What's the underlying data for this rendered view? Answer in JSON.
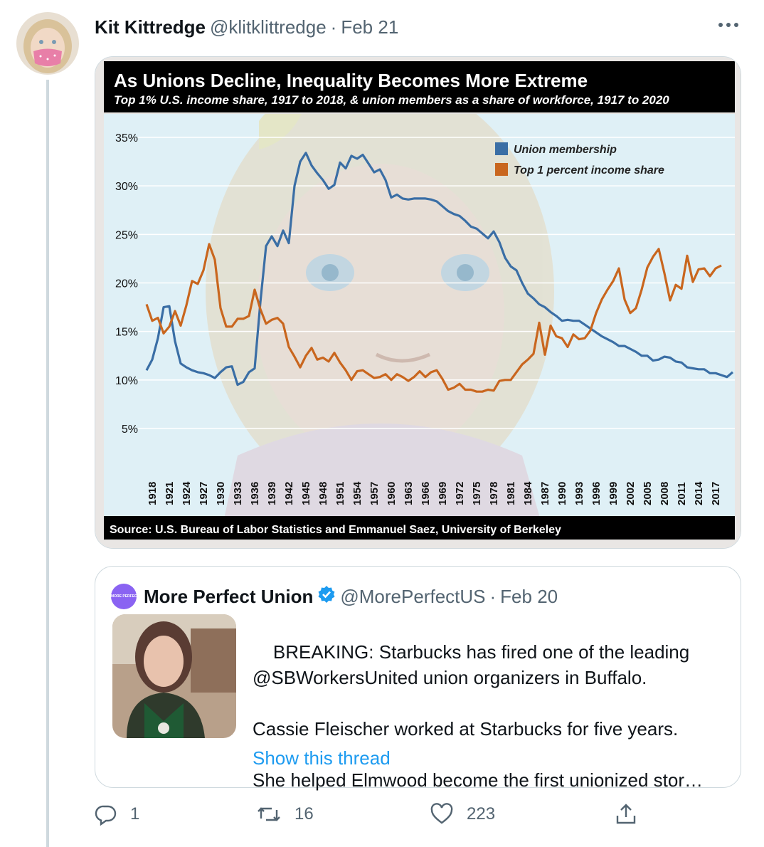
{
  "tweet": {
    "display_name": "Kit Kittredge",
    "handle": "@klitklittredge",
    "separator": "·",
    "date": "Feb 21",
    "more_label": "•••"
  },
  "media": {
    "title": "As Unions Decline, Inequality Becomes More Extreme",
    "subtitle": "Top 1% U.S. income share, 1917 to 2018, & union members as a share of workforce, 1917 to 2020",
    "source": "Source: U.S. Bureau of Labor Statistics and Emmanuel Saez, University of Berkeley"
  },
  "chart_data": {
    "type": "line",
    "title": "As Unions Decline, Inequality Becomes More Extreme",
    "subtitle": "Top 1% U.S. income share, 1917 to 2018, & union members as a share of workforce, 1917 to 2020",
    "ylim": [
      0,
      37
    ],
    "y_ticks": [
      "35%",
      "30%",
      "25%",
      "20%",
      "15%",
      "10%",
      "5%"
    ],
    "y_tick_values": [
      35,
      30,
      25,
      20,
      15,
      10,
      5
    ],
    "x_ticks": [
      "1918",
      "1921",
      "1924",
      "1927",
      "1930",
      "1933",
      "1936",
      "1939",
      "1942",
      "1945",
      "1948",
      "1951",
      "1954",
      "1957",
      "1960",
      "1963",
      "1966",
      "1969",
      "1972",
      "1975",
      "1978",
      "1981",
      "1984",
      "1987",
      "1990",
      "1993",
      "1996",
      "1999",
      "2002",
      "2005",
      "2008",
      "2011",
      "2014",
      "2017"
    ],
    "grid": true,
    "legend_position": "top-right",
    "source": "Source: U.S. Bureau of Labor Statistics and Emmanuel Saez, University of Berkeley",
    "series": [
      {
        "name": "Union membership",
        "color": "#3a6ea5",
        "x": [
          1917,
          1918,
          1919,
          1920,
          1921,
          1922,
          1923,
          1924,
          1925,
          1926,
          1927,
          1928,
          1929,
          1930,
          1931,
          1932,
          1933,
          1934,
          1935,
          1936,
          1937,
          1938,
          1939,
          1940,
          1941,
          1942,
          1943,
          1944,
          1945,
          1946,
          1947,
          1948,
          1949,
          1950,
          1951,
          1952,
          1953,
          1954,
          1955,
          1956,
          1957,
          1958,
          1959,
          1960,
          1961,
          1962,
          1963,
          1964,
          1965,
          1966,
          1967,
          1968,
          1969,
          1970,
          1971,
          1972,
          1973,
          1974,
          1975,
          1976,
          1977,
          1978,
          1979,
          1980,
          1981,
          1982,
          1983,
          1984,
          1985,
          1986,
          1987,
          1988,
          1989,
          1990,
          1991,
          1992,
          1993,
          1994,
          1995,
          1996,
          1997,
          1998,
          1999,
          2000,
          2001,
          2002,
          2003,
          2004,
          2005,
          2006,
          2007,
          2008,
          2009,
          2010,
          2011,
          2012,
          2013,
          2014,
          2015,
          2016,
          2017,
          2018,
          2019,
          2020
        ],
        "y": [
          11.0,
          12.1,
          14.3,
          17.5,
          17.6,
          14.0,
          11.7,
          11.3,
          11.0,
          10.8,
          10.7,
          10.5,
          10.2,
          10.8,
          11.3,
          11.4,
          9.5,
          9.8,
          10.8,
          11.2,
          18.0,
          23.8,
          24.8,
          23.8,
          25.4,
          24.1,
          30.0,
          32.5,
          33.4,
          32.1,
          31.3,
          30.6,
          29.7,
          30.1,
          32.4,
          31.8,
          33.1,
          32.8,
          33.2,
          32.3,
          31.4,
          31.7,
          30.6,
          28.8,
          29.1,
          28.7,
          28.6,
          28.7,
          28.7,
          28.7,
          28.6,
          28.4,
          27.9,
          27.4,
          27.1,
          26.9,
          26.4,
          25.8,
          25.6,
          25.1,
          24.6,
          25.3,
          24.2,
          22.6,
          21.7,
          21.3,
          20.0,
          18.9,
          18.4,
          17.8,
          17.5,
          17.0,
          16.6,
          16.1,
          16.2,
          16.1,
          16.1,
          15.7,
          15.3,
          14.9,
          14.5,
          14.2,
          13.9,
          13.5,
          13.5,
          13.2,
          12.9,
          12.5,
          12.5,
          12.0,
          12.1,
          12.4,
          12.3,
          11.9,
          11.8,
          11.3,
          11.2,
          11.1,
          11.1,
          10.7,
          10.7,
          10.5,
          10.3,
          10.8
        ]
      },
      {
        "name": "Top 1 percent income share",
        "color": "#c9661e",
        "x": [
          1917,
          1918,
          1919,
          1920,
          1921,
          1922,
          1923,
          1924,
          1925,
          1926,
          1927,
          1928,
          1929,
          1930,
          1931,
          1932,
          1933,
          1934,
          1935,
          1936,
          1937,
          1938,
          1939,
          1940,
          1941,
          1942,
          1943,
          1944,
          1945,
          1946,
          1947,
          1948,
          1949,
          1950,
          1951,
          1952,
          1953,
          1954,
          1955,
          1956,
          1957,
          1958,
          1959,
          1960,
          1961,
          1962,
          1963,
          1964,
          1965,
          1966,
          1967,
          1968,
          1969,
          1970,
          1971,
          1972,
          1973,
          1974,
          1975,
          1976,
          1977,
          1978,
          1979,
          1980,
          1981,
          1982,
          1983,
          1984,
          1985,
          1986,
          1987,
          1988,
          1989,
          1990,
          1991,
          1992,
          1993,
          1994,
          1995,
          1996,
          1997,
          1998,
          1999,
          2000,
          2001,
          2002,
          2003,
          2004,
          2005,
          2006,
          2007,
          2008,
          2009,
          2010,
          2011,
          2012,
          2013,
          2014,
          2015,
          2016,
          2017,
          2018
        ],
        "y": [
          17.8,
          16.1,
          16.4,
          14.8,
          15.5,
          17.1,
          15.6,
          17.7,
          20.2,
          19.9,
          21.3,
          24.0,
          22.4,
          17.4,
          15.5,
          15.5,
          16.3,
          16.3,
          16.6,
          19.3,
          17.3,
          15.8,
          16.2,
          16.4,
          15.8,
          13.4,
          12.4,
          11.3,
          12.5,
          13.3,
          12.1,
          12.3,
          11.9,
          12.8,
          11.8,
          11.0,
          10.0,
          10.9,
          11.0,
          10.6,
          10.2,
          10.3,
          10.6,
          10.0,
          10.6,
          10.3,
          9.9,
          10.3,
          10.9,
          10.3,
          10.8,
          11.0,
          10.1,
          9.0,
          9.2,
          9.6,
          9.0,
          9.0,
          8.8,
          8.8,
          9.0,
          8.9,
          9.9,
          10.0,
          10.0,
          10.8,
          11.6,
          12.1,
          12.7,
          15.9,
          12.6,
          15.6,
          14.5,
          14.3,
          13.4,
          14.7,
          14.2,
          14.3,
          15.1,
          16.9,
          18.3,
          19.3,
          20.2,
          21.5,
          18.3,
          16.9,
          17.4,
          19.3,
          21.6,
          22.7,
          23.5,
          21.0,
          18.2,
          19.8,
          19.4,
          22.8,
          20.1,
          21.4,
          21.5,
          20.7,
          21.5,
          21.8
        ]
      }
    ]
  },
  "quote": {
    "display_name": "More Perfect Union",
    "logo_text": "MORE PERFECT UNION",
    "handle": "@MorePerfectUS",
    "separator": "·",
    "date": "Feb 20",
    "text": "BREAKING: Starbucks has fired one of the leading\n@SBWorkersUnited union organizers in Buffalo.\n\nCassie Fleischer worked at Starbucks for five years.",
    "text_truncated": "She helped Elmwood become the first unionized stor…",
    "show_thread": "Show this thread"
  },
  "actions": {
    "reply_count": "1",
    "retweet_count": "16",
    "like_count": "223"
  },
  "icons": [
    "more-icon",
    "verified-badge-icon",
    "reply-icon",
    "retweet-icon",
    "like-icon",
    "share-icon"
  ],
  "colors": {
    "accent": "#1d9bf0",
    "union_line": "#3a6ea5",
    "income_line": "#c9661e",
    "chart_bg": "#dff0f6"
  }
}
